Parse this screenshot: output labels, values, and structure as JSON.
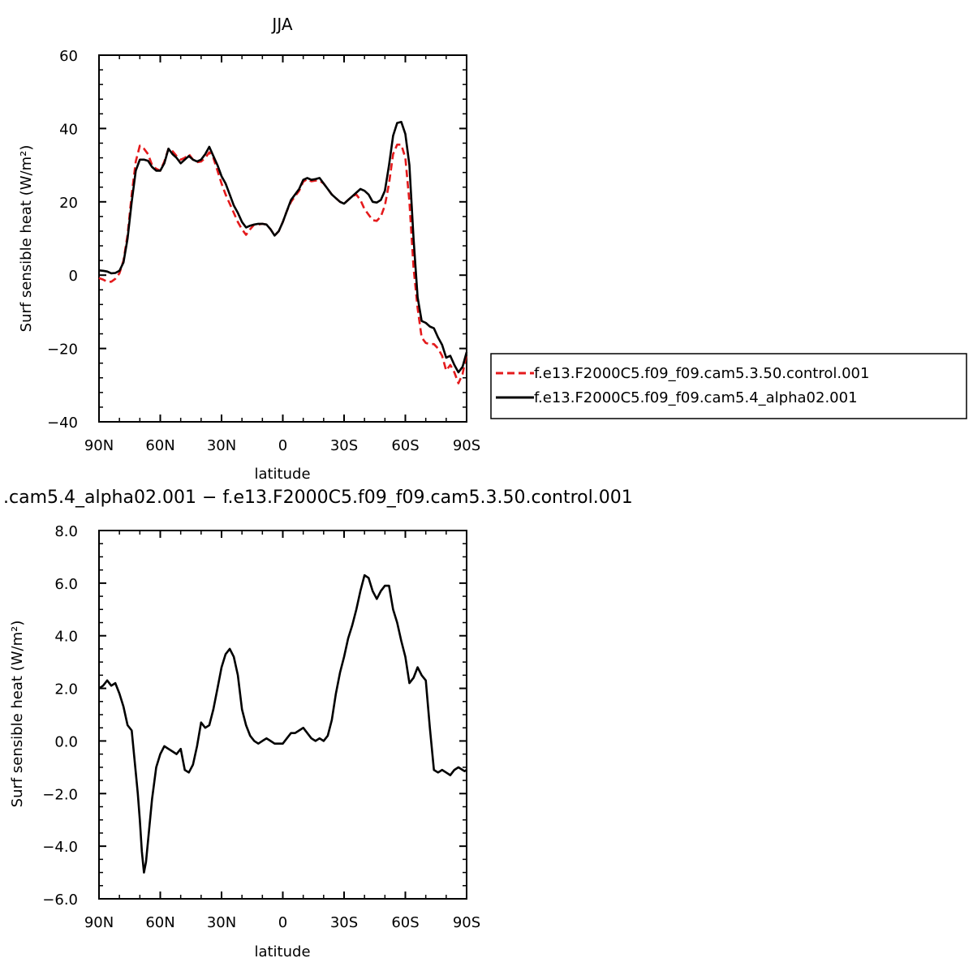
{
  "chart_data": [
    {
      "type": "line",
      "title": "JJA",
      "xlabel": "latitude",
      "ylabel": "Surf sensible heat (W/m²)",
      "xlim": [
        90,
        -90
      ],
      "ylim": [
        -40,
        60
      ],
      "xticks": [
        90,
        60,
        30,
        0,
        -30,
        -60,
        -90
      ],
      "xtick_labels": [
        "90N",
        "60N",
        "30N",
        "0",
        "30S",
        "60S",
        "90S"
      ],
      "yticks": [
        -40,
        -20,
        0,
        20,
        40,
        60
      ],
      "ytick_labels": [
        "−40",
        "−20",
        "0",
        "20",
        "40",
        "60"
      ],
      "legend_position": "right",
      "grid": false,
      "series": [
        {
          "name": "f.e13.F2000C5.f09_f09.cam5.3.50.control.001",
          "color": "#e41a1c",
          "dash": "dashed",
          "x": [
            90,
            88,
            86,
            84,
            82,
            80,
            78,
            76,
            74,
            72,
            70,
            68,
            66,
            64,
            62,
            60,
            58,
            56,
            54,
            52,
            50,
            48,
            46,
            44,
            42,
            40,
            38,
            36,
            34,
            32,
            30,
            28,
            26,
            24,
            22,
            20,
            18,
            16,
            14,
            12,
            10,
            8,
            6,
            4,
            2,
            0,
            -2,
            -4,
            -6,
            -8,
            -10,
            -12,
            -14,
            -16,
            -18,
            -20,
            -22,
            -24,
            -26,
            -28,
            -30,
            -32,
            -34,
            -36,
            -38,
            -40,
            -42,
            -44,
            -46,
            -48,
            -50,
            -52,
            -54,
            -56,
            -58,
            -60,
            -62,
            -64,
            -66,
            -68,
            -70,
            -72,
            -74,
            -76,
            -78,
            -80,
            -82,
            -84,
            -86,
            -88,
            -90
          ],
          "y": [
            -0.8,
            -1.2,
            -1.8,
            -1.8,
            -1.0,
            0.5,
            4.0,
            11.0,
            22.0,
            31.0,
            35.3,
            34.5,
            33.0,
            30.0,
            29.0,
            28.5,
            31.0,
            34.5,
            33.8,
            32.5,
            31.5,
            32.0,
            33.0,
            31.5,
            30.8,
            31.0,
            32.0,
            33.5,
            32.0,
            28.5,
            25.0,
            22.0,
            19.5,
            17.0,
            14.5,
            12.5,
            11.0,
            12.5,
            13.8,
            13.8,
            14.0,
            13.8,
            12.5,
            10.8,
            12.0,
            14.5,
            17.5,
            20.0,
            21.5,
            23.0,
            25.5,
            26.2,
            25.6,
            25.8,
            25.8,
            25.0,
            23.5,
            22.0,
            21.0,
            20.0,
            19.5,
            20.5,
            21.5,
            22.0,
            20.5,
            18.0,
            16.5,
            15.0,
            14.8,
            16.0,
            19.0,
            25.0,
            33.0,
            35.6,
            35.6,
            32.0,
            20.0,
            2.0,
            -9.0,
            -17.0,
            -18.5,
            -18.8,
            -18.8,
            -20.0,
            -22.0,
            -26.0,
            -24.5,
            -26.5,
            -29.5,
            -27.0,
            -21.5
          ]
        },
        {
          "name": "f.e13.F2000C5.f09_f09.cam5.4_alpha02.001",
          "color": "#000000",
          "dash": "solid",
          "x": [
            90,
            88,
            86,
            84,
            82,
            80,
            78,
            76,
            74,
            72,
            70,
            68,
            66,
            64,
            62,
            60,
            58,
            56,
            54,
            52,
            50,
            48,
            46,
            44,
            42,
            40,
            38,
            36,
            34,
            32,
            30,
            28,
            26,
            24,
            22,
            20,
            18,
            16,
            14,
            12,
            10,
            8,
            6,
            4,
            2,
            0,
            -2,
            -4,
            -6,
            -8,
            -10,
            -12,
            -14,
            -16,
            -18,
            -20,
            -22,
            -24,
            -26,
            -28,
            -30,
            -32,
            -34,
            -36,
            -38,
            -40,
            -42,
            -44,
            -46,
            -48,
            -50,
            -52,
            -54,
            -56,
            -58,
            -60,
            -62,
            -64,
            -66,
            -68,
            -70,
            -72,
            -74,
            -76,
            -78,
            -80,
            -82,
            -84,
            -86,
            -88,
            -90
          ],
          "y": [
            1.3,
            1.2,
            1.0,
            0.5,
            0.6,
            1.2,
            3.5,
            10.0,
            20.0,
            28.5,
            31.5,
            31.5,
            31.2,
            29.5,
            28.5,
            28.5,
            30.5,
            34.5,
            33.0,
            32.0,
            30.5,
            31.5,
            32.5,
            31.5,
            31.0,
            31.5,
            33.0,
            35.0,
            32.5,
            30.0,
            27.0,
            25.0,
            22.0,
            19.0,
            17.0,
            14.5,
            13.0,
            13.5,
            13.8,
            14.0,
            14.0,
            13.8,
            12.5,
            10.8,
            12.0,
            14.5,
            17.5,
            20.5,
            22.0,
            23.5,
            26.0,
            26.5,
            26.0,
            26.2,
            26.5,
            25.0,
            23.5,
            22.0,
            21.0,
            20.0,
            19.5,
            20.5,
            21.5,
            22.5,
            23.5,
            23.0,
            22.0,
            20.0,
            19.8,
            20.5,
            23.0,
            30.0,
            38.0,
            41.5,
            41.8,
            38.5,
            30.0,
            10.0,
            -6.0,
            -12.5,
            -13.0,
            -14.0,
            -14.5,
            -17.0,
            -19.0,
            -22.5,
            -22.0,
            -24.5,
            -26.5,
            -25.0,
            -21.0
          ]
        }
      ]
    },
    {
      "type": "line",
      "title": ".cam5.4_alpha02.001 − f.e13.F2000C5.f09_f09.cam5.3.50.control.001",
      "xlabel": "latitude",
      "ylabel": "Surf sensible heat (W/m²)",
      "xlim": [
        90,
        -90
      ],
      "ylim": [
        -6,
        8
      ],
      "xticks": [
        90,
        60,
        30,
        0,
        -30,
        -60,
        -90
      ],
      "xtick_labels": [
        "90N",
        "60N",
        "30N",
        "0",
        "30S",
        "60S",
        "90S"
      ],
      "yticks": [
        -6,
        -4,
        -2,
        0,
        2,
        4,
        6,
        8
      ],
      "ytick_labels": [
        "−6.0",
        "−4.0",
        "−2.0",
        "0.0",
        "2.0",
        "4.0",
        "6.0",
        "8.0"
      ],
      "grid": false,
      "series": [
        {
          "color": "#000000",
          "dash": "solid",
          "x": [
            90,
            88,
            86,
            84,
            82,
            80,
            78,
            76,
            74,
            72,
            71,
            70,
            69,
            68,
            67,
            66,
            64,
            62,
            60,
            58,
            56,
            54,
            52,
            50,
            48,
            46,
            44,
            42,
            40,
            38,
            36,
            34,
            32,
            30,
            28,
            26,
            24,
            22,
            20,
            18,
            16,
            14,
            12,
            10,
            8,
            6,
            4,
            2,
            0,
            -2,
            -4,
            -6,
            -8,
            -10,
            -12,
            -14,
            -16,
            -18,
            -20,
            -22,
            -24,
            -26,
            -28,
            -30,
            -32,
            -34,
            -36,
            -38,
            -40,
            -42,
            -44,
            -46,
            -48,
            -50,
            -52,
            -54,
            -56,
            -58,
            -60,
            -62,
            -64,
            -66,
            -68,
            -70,
            -72,
            -74,
            -76,
            -78,
            -80,
            -82,
            -84,
            -86,
            -88,
            -89,
            -90
          ],
          "y": [
            2.0,
            2.1,
            2.3,
            2.1,
            2.2,
            1.8,
            1.3,
            0.6,
            0.4,
            -1.2,
            -2.0,
            -3.0,
            -4.2,
            -5.0,
            -4.6,
            -3.8,
            -2.2,
            -1.0,
            -0.5,
            -0.2,
            -0.3,
            -0.4,
            -0.5,
            -0.3,
            -1.1,
            -1.2,
            -0.9,
            -0.2,
            0.7,
            0.5,
            0.6,
            1.2,
            2.0,
            2.8,
            3.3,
            3.5,
            3.2,
            2.5,
            1.2,
            0.6,
            0.2,
            0.0,
            -0.1,
            0.0,
            0.1,
            0.0,
            -0.1,
            -0.1,
            -0.1,
            0.1,
            0.3,
            0.3,
            0.4,
            0.5,
            0.3,
            0.1,
            0.0,
            0.1,
            0.0,
            0.2,
            0.8,
            1.8,
            2.6,
            3.2,
            3.9,
            4.4,
            5.0,
            5.7,
            6.3,
            6.2,
            5.7,
            5.4,
            5.7,
            5.9,
            5.9,
            5.0,
            4.5,
            3.8,
            3.2,
            2.2,
            2.4,
            2.8,
            2.5,
            2.3,
            0.5,
            -1.1,
            -1.2,
            -1.1,
            -1.2,
            -1.3,
            -1.1,
            -1.0,
            -1.1,
            -1.15,
            -1.1
          ]
        }
      ]
    }
  ]
}
